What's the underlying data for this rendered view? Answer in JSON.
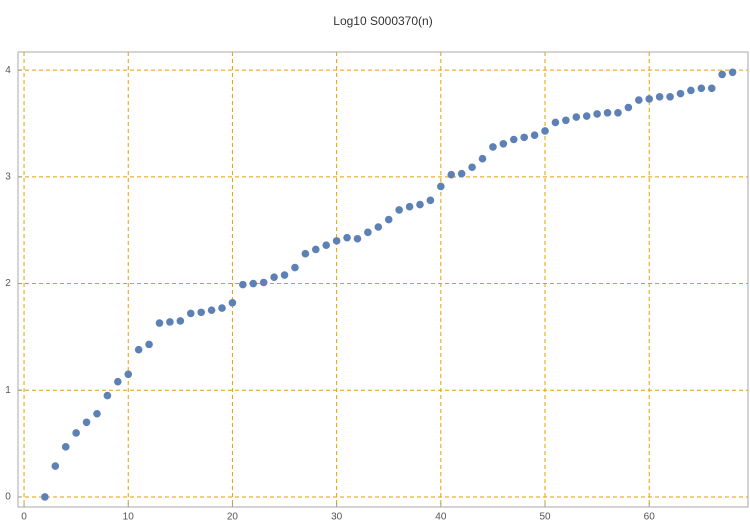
{
  "chart_data": {
    "type": "scatter",
    "title": "Log10 S000370(n)",
    "x": [
      2,
      3,
      4,
      5,
      6,
      7,
      8,
      9,
      10,
      11,
      12,
      13,
      14,
      15,
      16,
      17,
      18,
      19,
      20,
      21,
      22,
      23,
      24,
      25,
      26,
      27,
      28,
      29,
      30,
      31,
      32,
      33,
      34,
      35,
      36,
      37,
      38,
      39,
      40,
      41,
      42,
      43,
      44,
      45,
      46,
      47,
      48,
      49,
      50,
      51,
      52,
      53,
      54,
      55,
      56,
      57,
      58,
      59,
      60,
      61,
      62,
      63,
      64,
      65,
      66,
      67,
      68
    ],
    "values": [
      0,
      0.29,
      0.47,
      0.6,
      0.7,
      0.78,
      0.95,
      1.08,
      1.15,
      1.38,
      1.43,
      1.63,
      1.64,
      1.65,
      1.72,
      1.73,
      1.75,
      1.77,
      1.82,
      1.99,
      2.0,
      2.01,
      2.06,
      2.08,
      2.15,
      2.28,
      2.32,
      2.36,
      2.4,
      2.43,
      2.42,
      2.48,
      2.53,
      2.6,
      2.69,
      2.72,
      2.74,
      2.78,
      2.91,
      3.02,
      3.03,
      3.09,
      3.17,
      3.28,
      3.31,
      3.35,
      3.37,
      3.39,
      3.43,
      3.51,
      3.53,
      3.56,
      3.57,
      3.59,
      3.6,
      3.6,
      3.65,
      3.72,
      3.73,
      3.75,
      3.75,
      3.78,
      3.81,
      3.83,
      3.83,
      3.96,
      3.98
    ],
    "color": "#5e81b5",
    "grid_color": "#e69f00",
    "grid": true,
    "xlim": [
      -0.58,
      69.48
    ],
    "xticks": [
      0,
      10,
      20,
      30,
      40,
      50,
      60
    ],
    "ylim": [
      -0.094,
      4.17
    ],
    "yticks": [
      0,
      1,
      2,
      3,
      4
    ]
  }
}
